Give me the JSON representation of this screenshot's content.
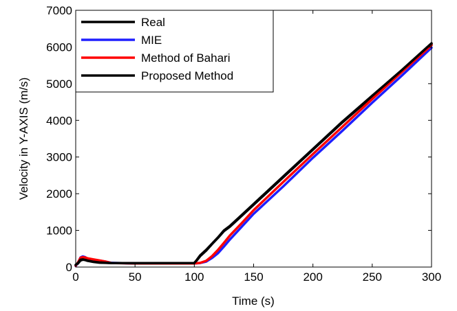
{
  "chart_data": {
    "type": "line",
    "title": "",
    "xlabel": "Time (s)",
    "ylabel": "Velocity in Y-AXIS (m/s)",
    "xlim": [
      0,
      300
    ],
    "ylim": [
      0,
      7000
    ],
    "xticks": [
      0,
      50,
      100,
      150,
      200,
      250,
      300
    ],
    "yticks": [
      0,
      1000,
      2000,
      3000,
      4000,
      5000,
      6000,
      7000
    ],
    "grid": false,
    "legend_position": "top-left",
    "series": [
      {
        "name": "Real",
        "color": "#000000",
        "x": [
          0,
          2,
          4,
          6,
          8,
          10,
          15,
          20,
          30,
          50,
          100,
          102,
          105,
          110,
          115,
          120,
          125,
          130,
          140,
          150,
          175,
          200,
          225,
          250,
          275,
          300
        ],
        "y": [
          50,
          100,
          180,
          200,
          190,
          170,
          140,
          120,
          110,
          105,
          110,
          180,
          300,
          450,
          630,
          800,
          980,
          1100,
          1400,
          1700,
          2450,
          3200,
          3950,
          4650,
          5350,
          6080
        ]
      },
      {
        "name": "MIE",
        "color": "#1f1fff",
        "x": [
          0,
          2,
          4,
          6,
          8,
          10,
          15,
          20,
          25,
          30,
          50,
          100,
          105,
          110,
          115,
          120,
          125,
          130,
          140,
          150,
          175,
          200,
          225,
          250,
          275,
          300
        ],
        "y": [
          30,
          120,
          260,
          290,
          270,
          230,
          200,
          175,
          150,
          115,
          100,
          100,
          110,
          150,
          250,
          380,
          560,
          750,
          1100,
          1450,
          2200,
          2980,
          3720,
          4480,
          5220,
          5980
        ]
      },
      {
        "name": "Method of Bahari",
        "color": "#ff0000",
        "x": [
          0,
          2,
          4,
          6,
          8,
          10,
          15,
          20,
          25,
          30,
          50,
          100,
          105,
          110,
          115,
          120,
          125,
          130,
          140,
          150,
          175,
          200,
          225,
          250,
          275,
          300
        ],
        "y": [
          40,
          130,
          250,
          270,
          260,
          240,
          210,
          180,
          150,
          110,
          100,
          100,
          115,
          170,
          300,
          470,
          660,
          860,
          1200,
          1550,
          2320,
          3080,
          3830,
          4580,
          5320,
          6050
        ]
      },
      {
        "name": "Proposed Method",
        "color": "#000000",
        "x": [
          0,
          2,
          4,
          6,
          8,
          10,
          15,
          20,
          30,
          50,
          100,
          102,
          105,
          110,
          115,
          120,
          125,
          130,
          140,
          150,
          175,
          200,
          225,
          250,
          275,
          300
        ],
        "y": [
          60,
          110,
          200,
          210,
          195,
          175,
          145,
          125,
          110,
          105,
          110,
          190,
          320,
          470,
          640,
          810,
          1000,
          1120,
          1420,
          1720,
          2470,
          3220,
          3970,
          4670,
          5370,
          6100
        ]
      }
    ]
  }
}
